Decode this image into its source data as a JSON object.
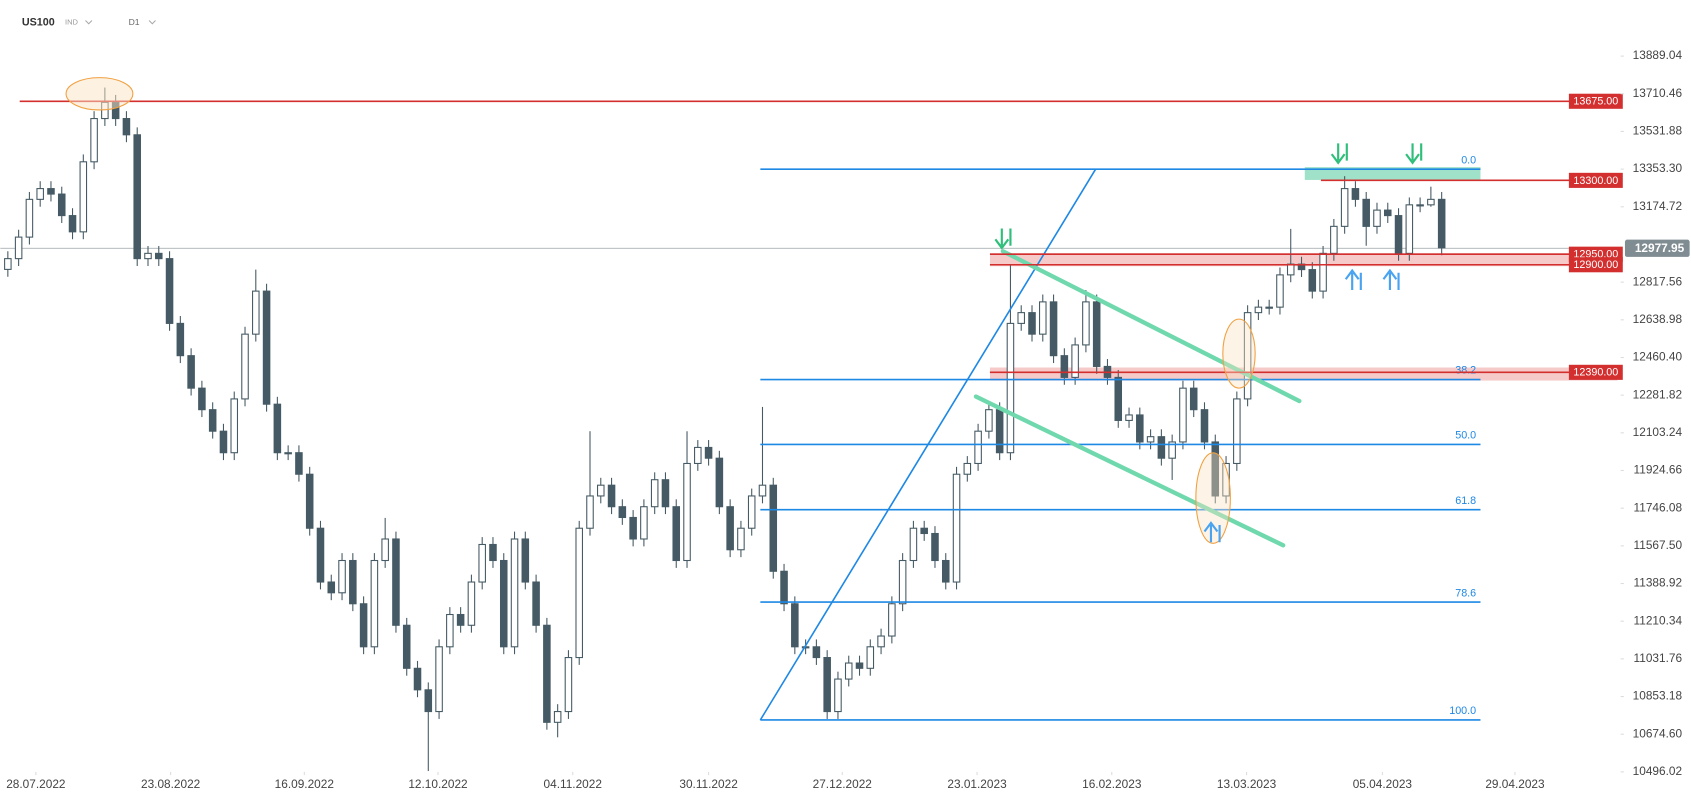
{
  "header": {
    "symbol": "US100",
    "market": "IND",
    "interval": "D1"
  },
  "chart_data": {
    "type": "candlestick",
    "xlim": [
      -0.7,
      149.3
    ],
    "xticks": [
      {
        "value": 2.6,
        "label": "28.07.2022"
      },
      {
        "value": 15.1,
        "label": "23.08.2022"
      },
      {
        "value": 27.5,
        "label": "16.09.2022"
      },
      {
        "value": 39.9,
        "label": "12.10.2022"
      },
      {
        "value": 52.4,
        "label": "04.11.2022"
      },
      {
        "value": 65,
        "label": "30.11.2022"
      },
      {
        "value": 77.4,
        "label": "27.12.2022"
      },
      {
        "value": 89.9,
        "label": "23.01.2023"
      },
      {
        "value": 102.4,
        "label": "16.02.2023"
      },
      {
        "value": 114.9,
        "label": "13.03.2023"
      },
      {
        "value": 127.5,
        "label": "05.04.2023"
      },
      {
        "value": 139.8,
        "label": "29.04.2023"
      }
    ],
    "ylim": [
      10358,
      14155
    ],
    "yticks": [
      13889.04,
      13710.46,
      13531.88,
      {
        "value": 13353.3,
        "label": "13353.30"
      },
      13174.72,
      12817.56,
      12638.98,
      {
        "value": 12460.4,
        "label": "12460.40"
      },
      12281.82,
      12103.24,
      11924.66,
      11746.08,
      {
        "value": 11567.5,
        "label": "11567.50"
      },
      11388.92,
      11210.34,
      11031.76,
      10853.18,
      {
        "value": 10674.6,
        "label": "10674.60"
      },
      10496.02
    ],
    "up_color": "#ffffff",
    "down_color": "#455a64",
    "last_price": 12977.95,
    "levels": [
      {
        "value": 13675,
        "label": "13675.00",
        "start": 1.1,
        "color": "#d32f2f"
      },
      {
        "value": 13300,
        "label": "13300.00",
        "start": 121.8,
        "color": "#d32f2f"
      },
      {
        "value": 12950,
        "label": "12950.00",
        "start": 91.1,
        "color": "#d32f2f"
      },
      {
        "value": 12900,
        "label": "12900.00",
        "start": 91.1,
        "color": "#d32f2f"
      },
      {
        "value": 12390,
        "label": "12390.00",
        "start": 91.1,
        "color": "#d32f2f"
      }
    ],
    "zones": [
      {
        "x": [
          120.3,
          136.6
        ],
        "y": [
          13302,
          13363
        ],
        "color": "#8fdcbf"
      },
      {
        "x": [
          91.1,
          149.3
        ],
        "y": [
          12893,
          12955
        ],
        "color": "#f6c1c1"
      },
      {
        "x": [
          91.1,
          149.3
        ],
        "y": [
          12351,
          12413
        ],
        "color": "#f6c1c1"
      }
    ],
    "fib": {
      "x": [
        69.8,
        136.6
      ],
      "color": "#1e88e5",
      "levels": [
        {
          "label": "0.0",
          "value": 13353
        },
        {
          "label": "38.2",
          "value": 12356
        },
        {
          "label": "50.0",
          "value": 12048
        },
        {
          "label": "61.8",
          "value": 11739
        },
        {
          "label": "78.6",
          "value": 11301
        },
        {
          "label": "100.0",
          "value": 10742
        }
      ]
    },
    "trendline": {
      "x": [
        69.8,
        100.9
      ],
      "y": [
        10742,
        13353
      ],
      "color": "#1e88e5"
    },
    "channels": [
      {
        "x": [
          92.3,
          119.8
        ],
        "y": [
          12964,
          12254
        ],
        "color": "#6fd8ad"
      },
      {
        "x": [
          89.8,
          118.3
        ],
        "y": [
          12275,
          11570
        ],
        "color": "#6fd8ad"
      }
    ],
    "candles": [
      [
        12878,
        12964,
        12843,
        12929
      ],
      [
        12929,
        13066,
        12894,
        13031
      ],
      [
        13031,
        13245,
        12996,
        13210
      ],
      [
        13210,
        13296,
        13175,
        13261
      ],
      [
        13261,
        13296,
        13200,
        13235
      ],
      [
        13235,
        13270,
        13098,
        13133
      ],
      [
        13133,
        13168,
        13021,
        13056
      ],
      [
        13056,
        13423,
        13021,
        13388
      ],
      [
        13388,
        13628,
        13353,
        13593
      ],
      [
        13593,
        13740,
        13558,
        13670
      ],
      [
        13670,
        13705,
        13558,
        13593
      ],
      [
        13593,
        13628,
        13481,
        13516
      ],
      [
        13516,
        13551,
        12894,
        12929
      ],
      [
        12929,
        12989,
        12894,
        12954
      ],
      [
        12954,
        12989,
        12894,
        12929
      ],
      [
        12929,
        12964,
        12587,
        12622
      ],
      [
        12622,
        12657,
        12434,
        12469
      ],
      [
        12469,
        12504,
        12280,
        12315
      ],
      [
        12315,
        12350,
        12178,
        12213
      ],
      [
        12213,
        12248,
        12076,
        12111
      ],
      [
        12111,
        12146,
        11974,
        12009
      ],
      [
        12009,
        12299,
        11974,
        12264
      ],
      [
        12264,
        12606,
        12229,
        12571
      ],
      [
        12571,
        12877,
        12536,
        12775
      ],
      [
        12775,
        12810,
        12204,
        12239
      ],
      [
        12239,
        12274,
        11974,
        12009
      ],
      [
        12009,
        12044,
        11974,
        12009
      ],
      [
        12009,
        12044,
        11872,
        11907
      ],
      [
        11907,
        11942,
        11616,
        11651
      ],
      [
        11651,
        11686,
        11361,
        11396
      ],
      [
        11396,
        11431,
        11310,
        11345
      ],
      [
        11345,
        11533,
        11310,
        11498
      ],
      [
        11498,
        11533,
        11258,
        11293
      ],
      [
        11293,
        11328,
        11054,
        11089
      ],
      [
        11089,
        11533,
        11054,
        11498
      ],
      [
        11498,
        11700,
        11463,
        11600
      ],
      [
        11600,
        11635,
        11156,
        11191
      ],
      [
        11191,
        11226,
        10952,
        10987
      ],
      [
        10987,
        11022,
        10850,
        10885
      ],
      [
        10885,
        10920,
        10500,
        10782
      ],
      [
        10782,
        11124,
        10747,
        11089
      ],
      [
        11089,
        11277,
        11054,
        11242
      ],
      [
        11242,
        11277,
        11156,
        11191
      ],
      [
        11191,
        11431,
        11156,
        11396
      ],
      [
        11396,
        11609,
        11361,
        11574
      ],
      [
        11574,
        11609,
        11463,
        11498
      ],
      [
        11498,
        11533,
        11054,
        11089
      ],
      [
        11089,
        11635,
        11054,
        11600
      ],
      [
        11600,
        11635,
        11361,
        11396
      ],
      [
        11396,
        11431,
        11156,
        11191
      ],
      [
        11191,
        11226,
        10696,
        10731
      ],
      [
        10731,
        10817,
        10660,
        10782
      ],
      [
        10782,
        11073,
        10747,
        11038
      ],
      [
        11038,
        11686,
        11003,
        11651
      ],
      [
        11651,
        12111,
        11616,
        11804
      ],
      [
        11804,
        11890,
        11769,
        11855
      ],
      [
        11855,
        11890,
        11718,
        11753
      ],
      [
        11753,
        11788,
        11667,
        11702
      ],
      [
        11702,
        11737,
        11565,
        11600
      ],
      [
        11600,
        11788,
        11565,
        11753
      ],
      [
        11753,
        11916,
        11718,
        11881
      ],
      [
        11881,
        11916,
        11718,
        11753
      ],
      [
        11753,
        11788,
        11463,
        11498
      ],
      [
        11498,
        12111,
        11463,
        11958
      ],
      [
        11958,
        12069,
        11923,
        12034
      ],
      [
        12034,
        12069,
        11948,
        11983
      ],
      [
        11983,
        12018,
        11718,
        11753
      ],
      [
        11753,
        11788,
        11514,
        11549
      ],
      [
        11549,
        11686,
        11514,
        11651
      ],
      [
        11651,
        11839,
        11616,
        11804
      ],
      [
        11804,
        12226,
        11769,
        11855
      ],
      [
        11855,
        11890,
        11412,
        11447
      ],
      [
        11447,
        11482,
        11258,
        11293
      ],
      [
        11293,
        11328,
        11054,
        11089
      ],
      [
        11089,
        11124,
        11054,
        11089
      ],
      [
        11089,
        11124,
        11003,
        11038
      ],
      [
        11038,
        11073,
        10747,
        10782
      ],
      [
        10782,
        10971,
        10747,
        10936
      ],
      [
        10936,
        11047,
        10901,
        11012
      ],
      [
        11012,
        11047,
        10952,
        10987
      ],
      [
        10987,
        11124,
        10952,
        11089
      ],
      [
        11089,
        11175,
        11054,
        11140
      ],
      [
        11140,
        11328,
        11105,
        11293
      ],
      [
        11293,
        11533,
        11258,
        11498
      ],
      [
        11498,
        11686,
        11463,
        11651
      ],
      [
        11651,
        11686,
        11591,
        11626
      ],
      [
        11626,
        11661,
        11463,
        11498
      ],
      [
        11498,
        11533,
        11361,
        11396
      ],
      [
        11396,
        11942,
        11361,
        11907
      ],
      [
        11907,
        11993,
        11872,
        11958
      ],
      [
        11958,
        12146,
        11923,
        12111
      ],
      [
        12111,
        12248,
        12076,
        12213
      ],
      [
        12213,
        12248,
        11974,
        12009
      ],
      [
        12009,
        12903,
        11974,
        12622
      ],
      [
        12622,
        12708,
        12587,
        12673
      ],
      [
        12673,
        12708,
        12536,
        12571
      ],
      [
        12571,
        12759,
        12536,
        12724
      ],
      [
        12724,
        12759,
        12434,
        12469
      ],
      [
        12469,
        12504,
        12331,
        12366
      ],
      [
        12366,
        12555,
        12331,
        12520
      ],
      [
        12520,
        12780,
        12485,
        12724
      ],
      [
        12724,
        12759,
        12383,
        12418
      ],
      [
        12418,
        12453,
        12331,
        12366
      ],
      [
        12366,
        12401,
        12127,
        12162
      ],
      [
        12162,
        12223,
        12127,
        12188
      ],
      [
        12188,
        12223,
        12025,
        12060
      ],
      [
        12060,
        12120,
        12025,
        12085
      ],
      [
        12085,
        12120,
        11948,
        11983
      ],
      [
        11983,
        12095,
        11880,
        12060
      ],
      [
        12060,
        12350,
        12025,
        12315
      ],
      [
        12315,
        12350,
        12178,
        12213
      ],
      [
        12213,
        12248,
        12025,
        12060
      ],
      [
        12060,
        12095,
        11769,
        11804
      ],
      [
        11804,
        11993,
        11769,
        11958
      ],
      [
        11958,
        12299,
        11923,
        12264
      ],
      [
        12264,
        12708,
        12229,
        12673
      ],
      [
        12673,
        12734,
        12638,
        12699
      ],
      [
        12699,
        12734,
        12664,
        12699
      ],
      [
        12699,
        12887,
        12664,
        12852
      ],
      [
        12852,
        13070,
        12817,
        12903
      ],
      [
        12903,
        12938,
        12842,
        12877
      ],
      [
        12877,
        12912,
        12740,
        12775
      ],
      [
        12775,
        12989,
        12740,
        12954
      ],
      [
        12954,
        13117,
        12919,
        13082
      ],
      [
        13082,
        13320,
        13047,
        13261
      ],
      [
        13261,
        13296,
        13175,
        13210
      ],
      [
        13210,
        13245,
        12990,
        13082
      ],
      [
        13082,
        13194,
        13047,
        13159
      ],
      [
        13159,
        13194,
        13098,
        13133
      ],
      [
        13133,
        13168,
        12919,
        12954
      ],
      [
        12954,
        13219,
        12919,
        13184
      ],
      [
        13184,
        13219,
        13149,
        13184
      ],
      [
        13184,
        13270,
        13175,
        13210
      ],
      [
        13210,
        13245,
        12945,
        12980
      ]
    ]
  }
}
